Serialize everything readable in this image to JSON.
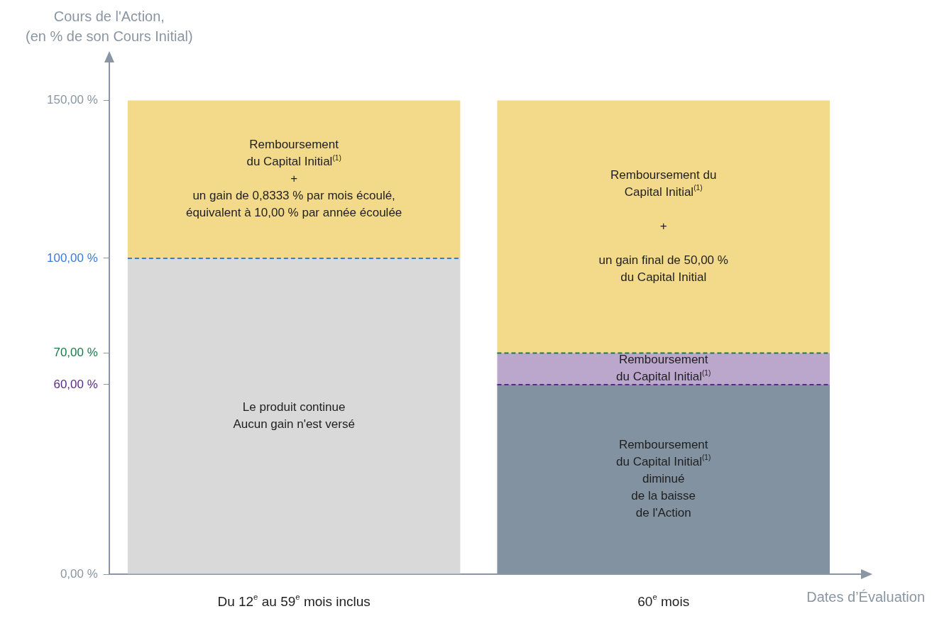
{
  "chart_data": {
    "type": "bar",
    "stacked": true,
    "ylabel": "Cours de l'Action,\n(en % de son Cours Initial)",
    "xlabel": "Dates d’Évaluation",
    "categories": [
      "Du 12$^{e}$ au 59$^{e}$ mois inclus",
      "60$^{e}$ mois"
    ],
    "series": [
      {
        "colors": [
          "#d9d9d9",
          "#8392a1"
        ],
        "values": [
          100,
          60
        ]
      },
      {
        "color": "#bba6cc",
        "values": [
          null,
          10
        ]
      },
      {
        "color": "#f3da8a",
        "values": [
          50,
          80
        ]
      }
    ],
    "annotations": [
      "Le produit continue\nAucun gain n'est versé",
      "Remboursement\ndu Capital Initial$^{(1)}$\ndiminué\nde la baisse\nde l'Action",
      "Remboursement\ndu Capital Initial$^{(1)}$",
      "Remboursement\ndu Capital Initial$^{(1)}$\n+\nun gain de 0,8333 % par mois écoulé,\néquivalent à 10,00 % par année écoulée",
      "Remboursement du\nCapital Initial$^{(1)}$\n\n+\n\nun gain final de 50,00 %\ndu Capital Initial"
    ],
    "ylim": [
      0,
      162
    ],
    "yticks": [
      {
        "value": 0,
        "label": "0,00 %"
      },
      {
        "value": 60,
        "label": "60,00 %"
      },
      {
        "value": 70,
        "label": "70,00 %"
      },
      {
        "value": 100,
        "label": "100,00 %"
      },
      {
        "value": 150,
        "label": "150,00 %"
      }
    ],
    "ref_lines": [
      {
        "axis": "y",
        "value": 100,
        "label": null,
        "color": "#3a7bd5",
        "line_style": "dashed"
      },
      {
        "axis": "y",
        "value": 70,
        "label": null,
        "color": "#1a7a4a",
        "line_style": "dashed"
      },
      {
        "axis": "y",
        "value": 60,
        "label": null,
        "color": "#5b2a86",
        "line_style": "dashed"
      }
    ],
    "grid": false,
    "legend": false
  }
}
